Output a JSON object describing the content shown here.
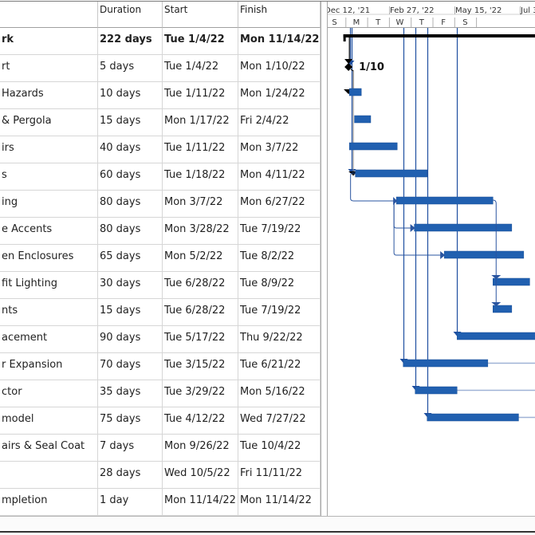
{
  "table": {
    "headers": {
      "name": "",
      "duration": "Duration",
      "start": "Start",
      "finish": "Finish"
    },
    "rows": [
      {
        "name": "rk",
        "duration": "222 days",
        "start": "Tue 1/4/22",
        "finish": "Mon 11/14/22",
        "summary": true
      },
      {
        "name": "rt",
        "duration": "5 days",
        "start": "Tue 1/4/22",
        "finish": "Mon 1/10/22"
      },
      {
        "name": " Hazards",
        "duration": "10 days",
        "start": "Tue 1/11/22",
        "finish": "Mon 1/24/22"
      },
      {
        "name": "& Pergola",
        "duration": "15 days",
        "start": "Mon 1/17/22",
        "finish": "Fri 2/4/22"
      },
      {
        "name": "irs",
        "duration": "40 days",
        "start": "Tue 1/11/22",
        "finish": "Mon 3/7/22"
      },
      {
        "name": "s",
        "duration": "60 days",
        "start": "Tue 1/18/22",
        "finish": "Mon 4/11/22"
      },
      {
        "name": "ing",
        "duration": "80 days",
        "start": "Mon 3/7/22",
        "finish": "Mon 6/27/22"
      },
      {
        "name": "e Accents",
        "duration": "80 days",
        "start": "Mon 3/28/22",
        "finish": "Tue 7/19/22"
      },
      {
        "name": "en Enclosures",
        "duration": "65 days",
        "start": "Mon 5/2/22",
        "finish": "Tue 8/2/22"
      },
      {
        "name": "fit Lighting",
        "duration": "30 days",
        "start": "Tue 6/28/22",
        "finish": "Tue 8/9/22"
      },
      {
        "name": "nts",
        "duration": "15 days",
        "start": "Tue 6/28/22",
        "finish": "Tue 7/19/22"
      },
      {
        "name": "acement",
        "duration": "90 days",
        "start": "Tue 5/17/22",
        "finish": "Thu 9/22/22"
      },
      {
        "name": "r Expansion",
        "duration": "70 days",
        "start": "Tue 3/15/22",
        "finish": "Tue 6/21/22"
      },
      {
        "name": "ctor",
        "duration": "35 days",
        "start": "Tue 3/29/22",
        "finish": "Mon 5/16/22"
      },
      {
        "name": "model",
        "duration": "75 days",
        "start": "Tue 4/12/22",
        "finish": "Wed 7/27/22"
      },
      {
        "name": "airs & Seal Coat",
        "duration": "7 days",
        "start": "Mon 9/26/22",
        "finish": "Tue 10/4/22"
      },
      {
        "name": "",
        "duration": "28 days",
        "start": "Wed 10/5/22",
        "finish": "Fri 11/11/22"
      },
      {
        "name": "mpletion",
        "duration": "1 day",
        "start": "Mon 11/14/22",
        "finish": "Mon 11/14/22"
      }
    ]
  },
  "timeline": {
    "major": [
      "Dec 12, '21",
      "Feb 27, '22",
      "May 15, '22",
      "Jul 3"
    ],
    "minor": [
      "S",
      "M",
      "T",
      "W",
      "T",
      "F",
      "S"
    ]
  },
  "gantt": {
    "colors": {
      "bar": "#2160b0",
      "summary": "#000000",
      "link": "#2a55a0",
      "deadline": "#1f4fa0",
      "slack": "#9fb2d6"
    },
    "milestone_label": "1/10",
    "tasks": [
      {
        "type": "summary",
        "start": "2022-01-04",
        "end": "2022-11-14"
      },
      {
        "type": "milestone",
        "date": "2022-01-10"
      },
      {
        "type": "task",
        "start": "2022-01-11",
        "end": "2022-01-24"
      },
      {
        "type": "task",
        "start": "2022-01-17",
        "end": "2022-02-04"
      },
      {
        "type": "task",
        "start": "2022-01-11",
        "end": "2022-03-07"
      },
      {
        "type": "task",
        "start": "2022-01-18",
        "end": "2022-04-11"
      },
      {
        "type": "task",
        "start": "2022-03-07",
        "end": "2022-06-27"
      },
      {
        "type": "task",
        "start": "2022-03-28",
        "end": "2022-07-19"
      },
      {
        "type": "task",
        "start": "2022-05-02",
        "end": "2022-08-02"
      },
      {
        "type": "task",
        "start": "2022-06-28",
        "end": "2022-08-09"
      },
      {
        "type": "task",
        "start": "2022-06-28",
        "end": "2022-07-19"
      },
      {
        "type": "task",
        "start": "2022-05-17",
        "end": "2022-09-22"
      },
      {
        "type": "task",
        "start": "2022-03-15",
        "end": "2022-06-21",
        "slack": true
      },
      {
        "type": "task",
        "start": "2022-03-29",
        "end": "2022-05-16",
        "slack": true
      },
      {
        "type": "task",
        "start": "2022-04-12",
        "end": "2022-07-27",
        "slack": true
      },
      {
        "type": "none"
      },
      {
        "type": "none"
      },
      {
        "type": "none"
      }
    ],
    "deadlines": [
      {
        "date": "2022-01-12",
        "row": 1
      },
      {
        "date": "2022-01-14",
        "row": 5
      },
      {
        "date": "2022-03-15",
        "row": 12
      },
      {
        "date": "2022-03-29",
        "row": 13
      },
      {
        "date": "2022-04-12",
        "row": 14
      },
      {
        "date": "2022-05-17",
        "row": 11
      }
    ]
  }
}
